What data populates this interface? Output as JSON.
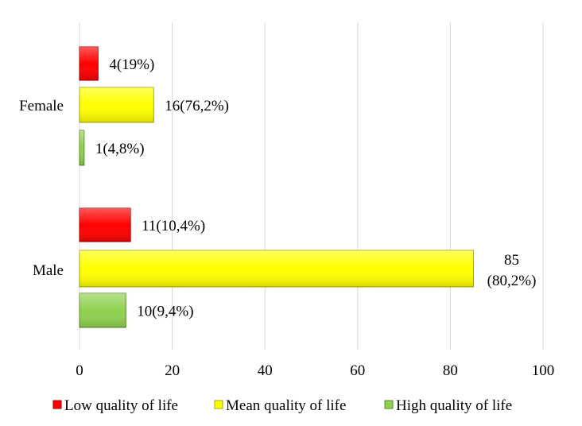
{
  "chart_data": {
    "type": "bar",
    "orientation": "horizontal",
    "categories": [
      "Female",
      "Male"
    ],
    "series": [
      {
        "name": "Low quality of life",
        "color": "#ff0000",
        "values": [
          4,
          11
        ],
        "labels": [
          [
            "4(19%)"
          ],
          [
            "11(10,4%)"
          ]
        ]
      },
      {
        "name": "Mean quality of life",
        "color": "#ffff00",
        "values": [
          16,
          85
        ],
        "labels": [
          [
            "16(76,2%)"
          ],
          [
            "85",
            "(80,2%)"
          ]
        ]
      },
      {
        "name": "High quality of life",
        "color": "#8fd14f",
        "values": [
          1,
          10
        ],
        "labels": [
          [
            "1(4,8%)"
          ],
          [
            "10(9,4%)"
          ]
        ]
      }
    ],
    "xlim": [
      0,
      100
    ],
    "xticks": [
      "0",
      "20",
      "40",
      "60",
      "80",
      "100"
    ],
    "grid": true,
    "legend": "bottom"
  }
}
